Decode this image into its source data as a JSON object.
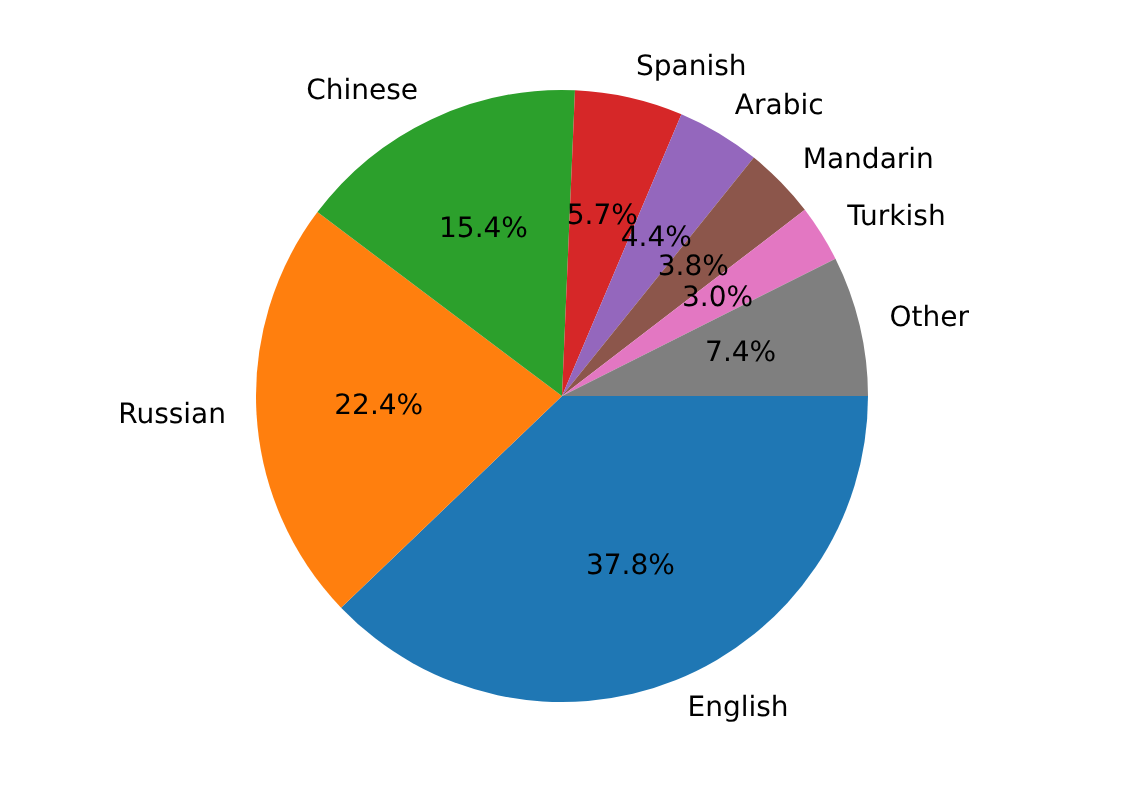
{
  "chart_data": {
    "type": "pie",
    "categories": [
      "English",
      "Russian",
      "Chinese",
      "Spanish",
      "Arabic",
      "Mandarin",
      "Turkish",
      "Other"
    ],
    "values": [
      37.8,
      22.4,
      15.4,
      5.7,
      4.4,
      3.8,
      3.0,
      7.4
    ],
    "colors": [
      "#1f77b4",
      "#ff7f0e",
      "#2ca02c",
      "#d62728",
      "#9467bd",
      "#8c564b",
      "#e377c2",
      "#7f7f7f"
    ],
    "value_labels": [
      "37.8%",
      "22.4%",
      "15.4%",
      "5.7%",
      "4.4%",
      "3.8%",
      "3.0%",
      "7.4%"
    ],
    "legend": false
  }
}
